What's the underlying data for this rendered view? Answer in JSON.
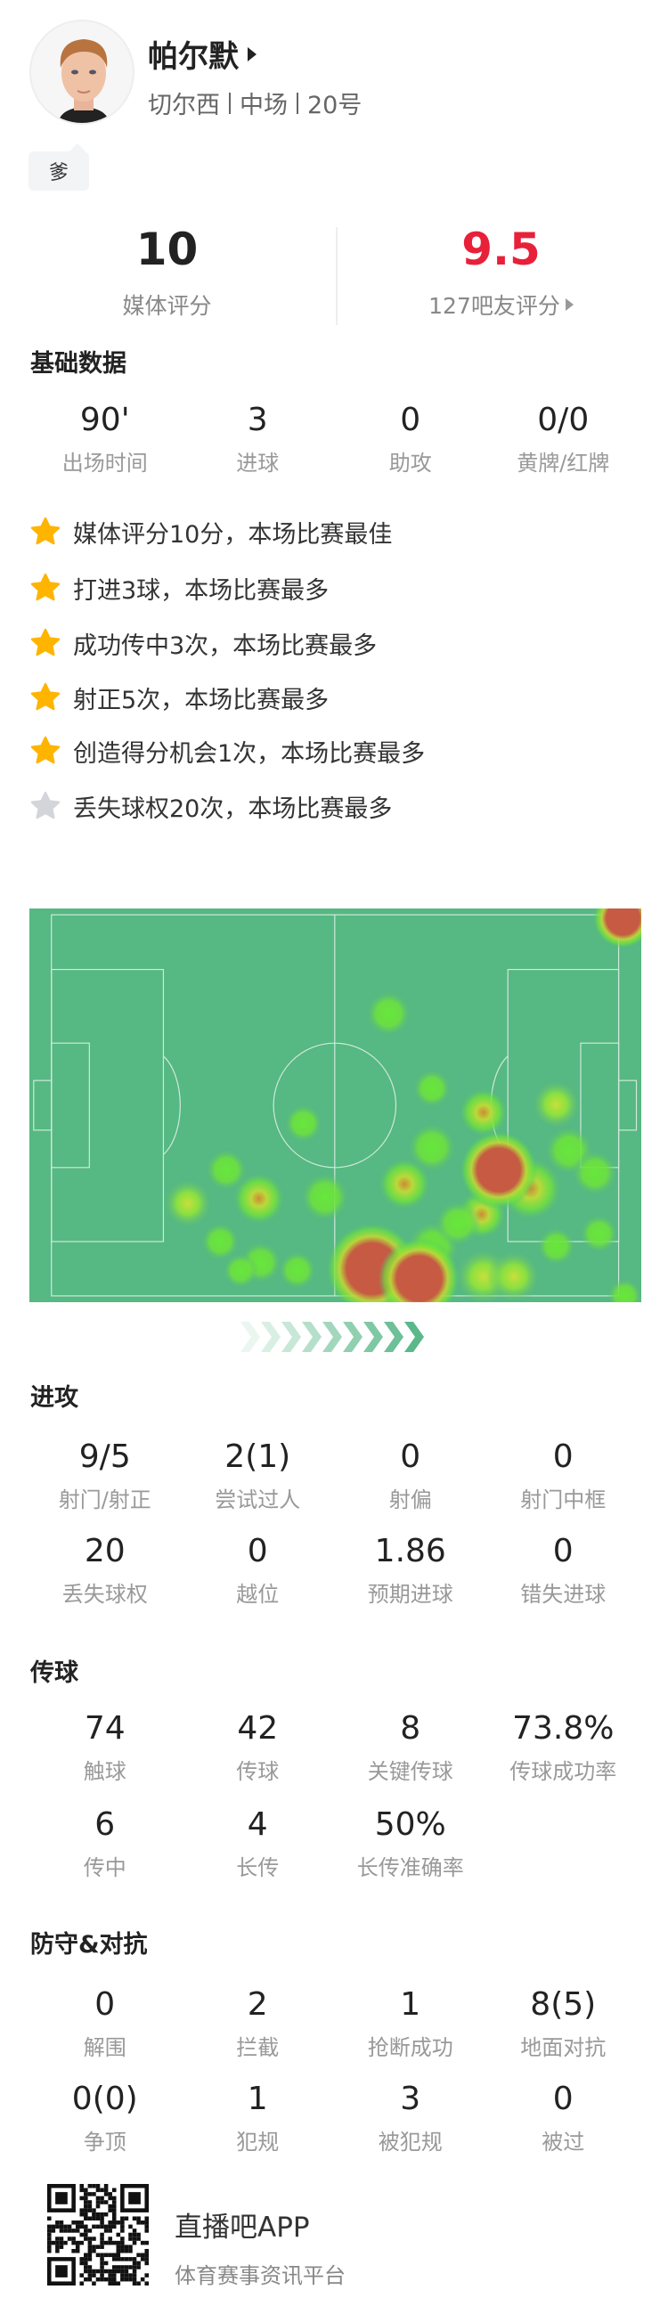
{
  "player": {
    "name": "帕尔默",
    "team": "切尔西",
    "position": "中场",
    "number": "20号",
    "tag": "爹"
  },
  "ratings": {
    "media": {
      "value": "10",
      "label": "媒体评分"
    },
    "fans": {
      "value": "9.5",
      "label": "127吧友评分",
      "color": "#e8203a"
    }
  },
  "basic": {
    "title": "基础数据",
    "stats": [
      {
        "value": "90'",
        "label": "出场时间"
      },
      {
        "value": "3",
        "label": "进球"
      },
      {
        "value": "0",
        "label": "助攻"
      },
      {
        "value": "0/0",
        "label": "黄牌/红牌"
      }
    ]
  },
  "achievements": [
    {
      "text": "媒体评分10分，本场比赛最佳",
      "icon": "star-gold"
    },
    {
      "text": "打进3球，本场比赛最多",
      "icon": "star-gold"
    },
    {
      "text": "成功传中3次，本场比赛最多",
      "icon": "star-gold"
    },
    {
      "text": "射正5次，本场比赛最多",
      "icon": "star-gold"
    },
    {
      "text": "创造得分机会1次，本场比赛最多",
      "icon": "star-gold"
    },
    {
      "text": "丢失球权20次，本场比赛最多",
      "icon": "star-gray"
    }
  ],
  "attack": {
    "title": "进攻",
    "stats": [
      {
        "value": "9/5",
        "label": "射门/射正"
      },
      {
        "value": "2(1)",
        "label": "尝试过人"
      },
      {
        "value": "0",
        "label": "射偏"
      },
      {
        "value": "0",
        "label": "射门中框"
      },
      {
        "value": "20",
        "label": "丢失球权"
      },
      {
        "value": "0",
        "label": "越位"
      },
      {
        "value": "1.86",
        "label": "预期进球"
      },
      {
        "value": "0",
        "label": "错失进球"
      }
    ]
  },
  "passing": {
    "title": "传球",
    "stats": [
      {
        "value": "74",
        "label": "触球"
      },
      {
        "value": "42",
        "label": "传球"
      },
      {
        "value": "8",
        "label": "关键传球"
      },
      {
        "value": "73.8%",
        "label": "传球成功率"
      },
      {
        "value": "6",
        "label": "传中"
      },
      {
        "value": "4",
        "label": "长传"
      },
      {
        "value": "50%",
        "label": "长传准确率"
      }
    ]
  },
  "defense": {
    "title": "防守&对抗",
    "stats": [
      {
        "value": "0",
        "label": "解围"
      },
      {
        "value": "2",
        "label": "拦截"
      },
      {
        "value": "1",
        "label": "抢断成功"
      },
      {
        "value": "8(5)",
        "label": "地面对抗"
      },
      {
        "value": "0(0)",
        "label": "争顶"
      },
      {
        "value": "1",
        "label": "犯规"
      },
      {
        "value": "3",
        "label": "被犯规"
      },
      {
        "value": "0",
        "label": "被过"
      }
    ]
  },
  "footer": {
    "app": "直播吧APP",
    "slogan": "体育赛事资讯平台"
  },
  "colors": {
    "pitch": "#56b882",
    "star": "#ffb400",
    "star_gray": "#d3d5da",
    "arrow": "#5bb88a"
  }
}
